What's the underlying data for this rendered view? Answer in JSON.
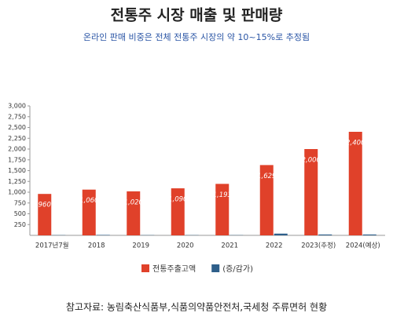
{
  "chart_data": {
    "type": "bar",
    "title": "전통주 시장 매출 및 판매량",
    "subtitle": "온라인 판매 비중은 전체 전통주 시장의 약 10~15%로 추정됨",
    "categories": [
      "2017년7월",
      "2018",
      "2019",
      "2020",
      "2021",
      "2022",
      "2023(추정)",
      "2024(예상)"
    ],
    "series": [
      {
        "name": "전통주출고액",
        "color": "#e0412a",
        "values": [
          960,
          1060,
          1020,
          1090,
          1193,
          1629,
          2000,
          2400
        ],
        "value_labels": [
          "960",
          "1,060",
          "1,020",
          "1,090",
          "1,193",
          "1,629",
          "2,000",
          "2,400"
        ]
      },
      {
        "name": "(증/감가)",
        "color": "#2e5f8a",
        "values": [
          5,
          10,
          5,
          5,
          5,
          40,
          20,
          20
        ]
      }
    ],
    "ylim": [
      0,
      3000
    ],
    "yticks": [
      250,
      500,
      750,
      {
        "value": 1000,
        "label": "1,000"
      },
      {
        "value": 1250,
        "label": "1,250"
      },
      {
        "value": 1500,
        "label": "1,500"
      },
      {
        "value": 1750,
        "label": "1,750"
      },
      {
        "value": 2000,
        "label": "2,000"
      },
      {
        "value": 2250,
        "label": "2,250"
      },
      {
        "value": 2500,
        "label": "2,500"
      },
      {
        "value": 2750,
        "label": "2,750"
      },
      {
        "value": 3000,
        "label": "3,000"
      }
    ],
    "grid": false,
    "legend": "bottom",
    "source": "참고자료: 농림축산식품부,식품의약품안전처,국세청 주류면허 현황"
  }
}
